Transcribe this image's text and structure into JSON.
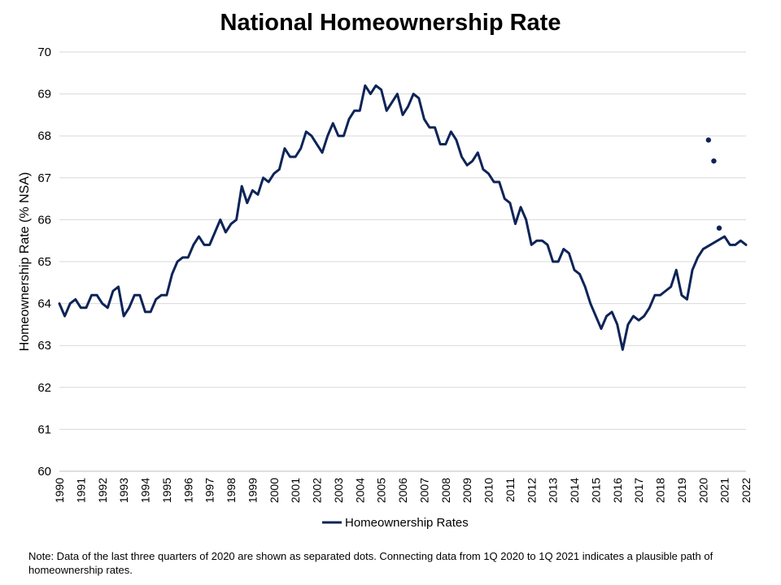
{
  "chart_data": {
    "type": "line",
    "title": "National Homeownership Rate",
    "xlabel": "",
    "ylabel": "Homeownership Rate (% NSA)",
    "ylim": [
      60,
      70
    ],
    "yticks": [
      60,
      61,
      62,
      63,
      64,
      65,
      66,
      67,
      68,
      69,
      70
    ],
    "xticks": [
      "1990",
      "1991",
      "1992",
      "1993",
      "1994",
      "1995",
      "1996",
      "1997",
      "1998",
      "1999",
      "2000",
      "2001",
      "2002",
      "2003",
      "2004",
      "2005",
      "2006",
      "2007",
      "2008",
      "2009",
      "2010",
      "2011",
      "2012",
      "2013",
      "2014",
      "2015",
      "2016",
      "2017",
      "2018",
      "2019",
      "2020",
      "2021",
      "2022"
    ],
    "grid": "horizontal",
    "legend_position": "bottom",
    "colors": {
      "line": "#0d2457",
      "grid": "#d9d9d9",
      "axis": "#bfbfbf"
    },
    "series": [
      {
        "name": "Homeownership Rates",
        "start": "1990 Q1",
        "frequency": "quarterly",
        "values": [
          64.0,
          63.7,
          64.0,
          64.1,
          63.9,
          63.9,
          64.2,
          64.2,
          64.0,
          63.9,
          64.3,
          64.4,
          63.7,
          63.9,
          64.2,
          64.2,
          63.8,
          63.8,
          64.1,
          64.2,
          64.2,
          64.7,
          65.0,
          65.1,
          65.1,
          65.4,
          65.6,
          65.4,
          65.4,
          65.7,
          66.0,
          65.7,
          65.9,
          66.0,
          66.8,
          66.4,
          66.7,
          66.6,
          67.0,
          66.9,
          67.1,
          67.2,
          67.7,
          67.5,
          67.5,
          67.7,
          68.1,
          68.0,
          67.8,
          67.6,
          68.0,
          68.3,
          68.0,
          68.0,
          68.4,
          68.6,
          68.6,
          69.2,
          69.0,
          69.2,
          69.1,
          68.6,
          68.8,
          69.0,
          68.5,
          68.7,
          69.0,
          68.9,
          68.4,
          68.2,
          68.2,
          67.8,
          67.8,
          68.1,
          67.9,
          67.5,
          67.3,
          67.4,
          67.6,
          67.2,
          67.1,
          66.9,
          66.9,
          66.5,
          66.4,
          65.9,
          66.3,
          66.0,
          65.4,
          65.5,
          65.5,
          65.4,
          65.0,
          65.0,
          65.3,
          65.2,
          64.8,
          64.7,
          64.4,
          64.0,
          63.7,
          63.4,
          63.7,
          63.8,
          63.5,
          62.9,
          63.5,
          63.7,
          63.6,
          63.7,
          63.9,
          64.2,
          64.2,
          64.3,
          64.4,
          64.8,
          64.2,
          64.1,
          64.8,
          65.1,
          65.3,
          null,
          null,
          null,
          65.6,
          65.4,
          65.4,
          65.5,
          65.4
        ],
        "separated_points": [
          {
            "x": "2020 Q2",
            "y": 67.9
          },
          {
            "x": "2020 Q3",
            "y": 67.4
          },
          {
            "x": "2020 Q4",
            "y": 65.8
          }
        ]
      }
    ]
  },
  "note": "Note: Data of the last three quarters of 2020  are shown as separated dots. Connecting data from 1Q 2020  to 1Q 2021  indicates a plausible path of homeownership rates."
}
